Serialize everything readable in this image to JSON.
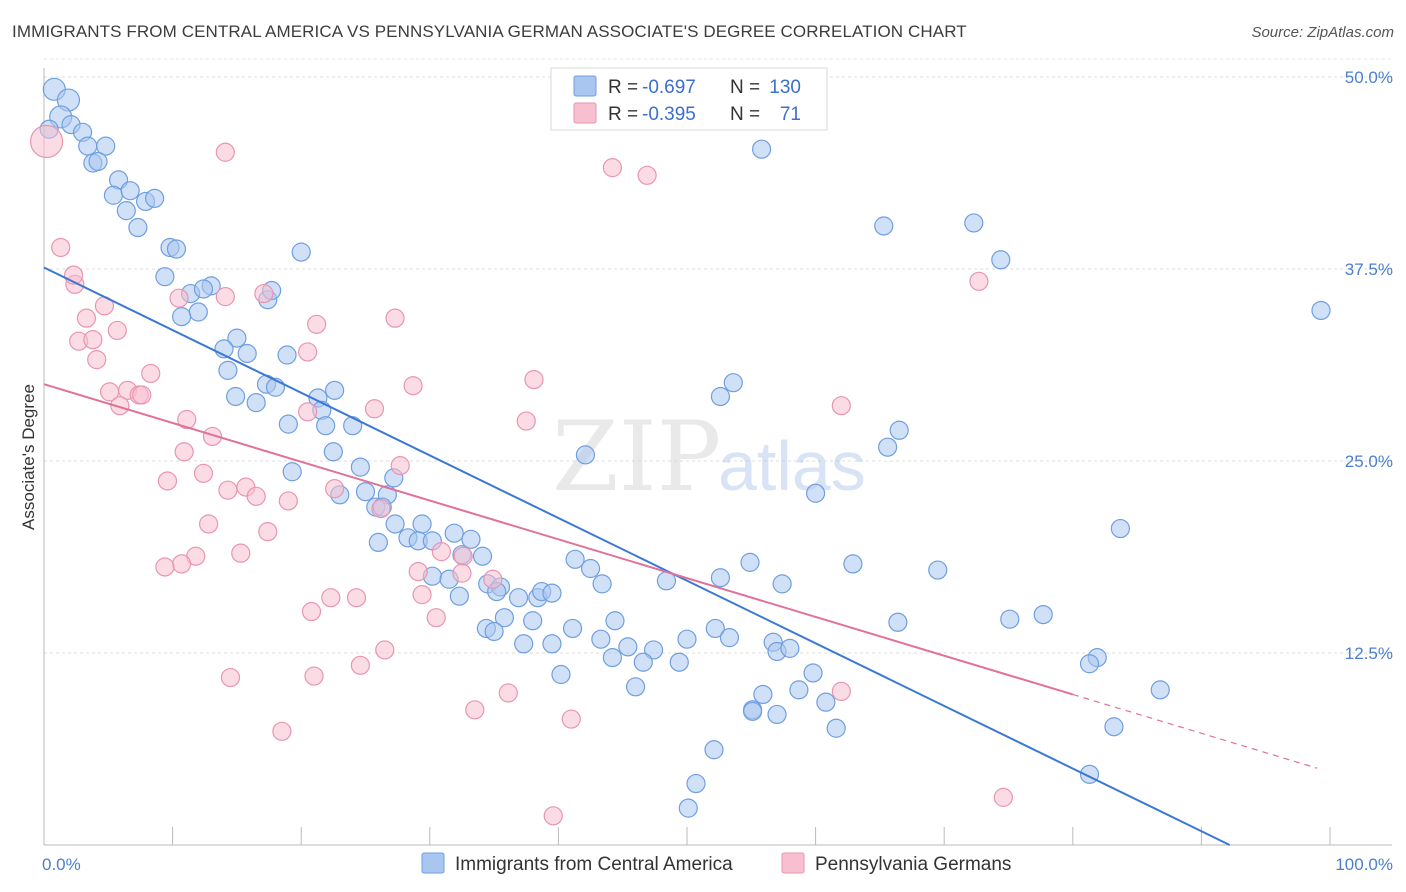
{
  "title": "IMMIGRANTS FROM CENTRAL AMERICA VS PENNSYLVANIA GERMAN ASSOCIATE'S DEGREE CORRELATION CHART",
  "source": "Source: ZipAtlas.com",
  "watermark": {
    "zip": "ZIP",
    "atlas": "atlas"
  },
  "legend_top": [
    {
      "r_label": "R =",
      "r_value": "-0.697",
      "n_label": "N =",
      "n_value": "130",
      "color": "#a9c6f0",
      "stroke": "#6f9fe0"
    },
    {
      "r_label": "R =",
      "r_value": "-0.395",
      "n_label": "N =",
      "n_value": "71",
      "color": "#f7bfd0",
      "stroke": "#e995b1"
    }
  ],
  "chart_data": {
    "type": "scatter",
    "xlabel": "",
    "ylabel": "Associate's Degree",
    "xlim": [
      0,
      100
    ],
    "ylim": [
      0,
      50
    ],
    "x_tick_labels": [
      "0.0%",
      "100.0%"
    ],
    "y_ticks": [
      12.5,
      25.0,
      37.5,
      50.0
    ],
    "y_tick_labels": [
      "12.5%",
      "25.0%",
      "37.5%",
      "50.0%"
    ],
    "grid": "horizontal dashed",
    "legend_position": "top-center and bottom",
    "series": [
      {
        "name": "Immigrants from Central America",
        "color": "#a9c6f0",
        "stroke": "#6f9fe0",
        "line_color": "#3b78d6",
        "trend": {
          "x0": 0,
          "y0": 37.6,
          "x1": 92.2,
          "y1": 0
        },
        "points": [
          [
            0.8,
            49.2
          ],
          [
            1.9,
            48.5
          ],
          [
            1.3,
            47.4
          ],
          [
            2.1,
            46.9
          ],
          [
            3.0,
            46.4
          ],
          [
            0.4,
            46.6
          ],
          [
            3.4,
            45.5
          ],
          [
            4.8,
            45.5
          ],
          [
            3.8,
            44.4
          ],
          [
            4.2,
            44.5
          ],
          [
            5.8,
            43.3
          ],
          [
            5.4,
            42.3
          ],
          [
            6.7,
            42.6
          ],
          [
            7.9,
            41.9
          ],
          [
            8.6,
            42.1
          ],
          [
            6.4,
            41.3
          ],
          [
            7.3,
            40.2
          ],
          [
            9.8,
            38.9
          ],
          [
            10.3,
            38.8
          ],
          [
            20.0,
            38.6
          ],
          [
            9.4,
            37.0
          ],
          [
            11.4,
            35.9
          ],
          [
            13.0,
            36.4
          ],
          [
            12.4,
            36.2
          ],
          [
            17.4,
            35.5
          ],
          [
            17.7,
            36.1
          ],
          [
            12.0,
            34.7
          ],
          [
            10.7,
            34.4
          ],
          [
            15.0,
            33.0
          ],
          [
            14.0,
            32.3
          ],
          [
            15.8,
            32.0
          ],
          [
            18.9,
            31.9
          ],
          [
            14.3,
            30.9
          ],
          [
            17.3,
            30.0
          ],
          [
            18.0,
            29.8
          ],
          [
            22.6,
            29.6
          ],
          [
            14.9,
            29.2
          ],
          [
            16.5,
            28.8
          ],
          [
            21.3,
            29.1
          ],
          [
            21.6,
            28.3
          ],
          [
            19.0,
            27.4
          ],
          [
            21.9,
            27.3
          ],
          [
            24.0,
            27.3
          ],
          [
            22.5,
            25.6
          ],
          [
            24.6,
            24.6
          ],
          [
            19.3,
            24.3
          ],
          [
            27.2,
            23.9
          ],
          [
            25.0,
            23.0
          ],
          [
            23.0,
            22.8
          ],
          [
            26.7,
            22.8
          ],
          [
            25.8,
            22.0
          ],
          [
            26.3,
            22.0
          ],
          [
            27.3,
            20.9
          ],
          [
            29.4,
            20.9
          ],
          [
            26.0,
            19.7
          ],
          [
            28.3,
            20.0
          ],
          [
            29.1,
            19.8
          ],
          [
            30.2,
            19.8
          ],
          [
            31.9,
            20.3
          ],
          [
            33.2,
            19.9
          ],
          [
            32.5,
            18.9
          ],
          [
            34.1,
            18.8
          ],
          [
            42.1,
            25.4
          ],
          [
            30.2,
            17.5
          ],
          [
            31.5,
            17.3
          ],
          [
            34.5,
            17.0
          ],
          [
            35.5,
            16.8
          ],
          [
            32.3,
            16.2
          ],
          [
            35.2,
            16.5
          ],
          [
            36.9,
            16.1
          ],
          [
            38.4,
            16.1
          ],
          [
            38.7,
            16.5
          ],
          [
            39.5,
            16.4
          ],
          [
            41.3,
            18.6
          ],
          [
            42.5,
            18.0
          ],
          [
            43.4,
            17.0
          ],
          [
            48.4,
            17.2
          ],
          [
            52.6,
            29.2
          ],
          [
            53.6,
            30.1
          ],
          [
            57.4,
            17.0
          ],
          [
            38.0,
            14.6
          ],
          [
            35.8,
            14.8
          ],
          [
            34.4,
            14.1
          ],
          [
            35.0,
            13.9
          ],
          [
            37.3,
            13.1
          ],
          [
            39.5,
            13.1
          ],
          [
            41.1,
            14.1
          ],
          [
            44.4,
            14.6
          ],
          [
            43.3,
            13.4
          ],
          [
            45.4,
            12.9
          ],
          [
            47.4,
            12.7
          ],
          [
            44.2,
            12.2
          ],
          [
            46.6,
            11.9
          ],
          [
            50.0,
            13.4
          ],
          [
            52.2,
            14.1
          ],
          [
            53.3,
            13.5
          ],
          [
            56.7,
            13.2
          ],
          [
            57.0,
            12.6
          ],
          [
            58.0,
            12.8
          ],
          [
            59.8,
            11.2
          ],
          [
            40.2,
            11.1
          ],
          [
            46.0,
            10.3
          ],
          [
            49.4,
            11.9
          ],
          [
            52.6,
            17.4
          ],
          [
            54.9,
            18.4
          ],
          [
            55.9,
            9.8
          ],
          [
            58.7,
            10.1
          ],
          [
            62.9,
            18.3
          ],
          [
            60.8,
            9.3
          ],
          [
            61.6,
            7.6
          ],
          [
            57.0,
            8.5
          ],
          [
            52.1,
            6.2
          ],
          [
            50.7,
            4.0
          ],
          [
            50.1,
            2.4
          ],
          [
            55.1,
            8.8
          ],
          [
            55.1,
            8.7
          ],
          [
            60.0,
            22.9
          ],
          [
            55.8,
            45.3
          ],
          [
            65.3,
            40.3
          ],
          [
            72.3,
            40.5
          ],
          [
            74.4,
            38.1
          ],
          [
            65.6,
            25.9
          ],
          [
            66.5,
            27.0
          ],
          [
            69.5,
            17.9
          ],
          [
            66.4,
            14.5
          ],
          [
            75.1,
            14.7
          ],
          [
            77.7,
            15.0
          ],
          [
            83.7,
            20.6
          ],
          [
            99.3,
            34.8
          ],
          [
            81.9,
            12.2
          ],
          [
            81.3,
            11.8
          ],
          [
            86.8,
            10.1
          ],
          [
            83.2,
            7.7
          ],
          [
            81.3,
            4.6
          ]
        ]
      },
      {
        "name": "Pennsylvania Germans",
        "color": "#f7bfd0",
        "stroke": "#e995b1",
        "line_color": "#e0729a",
        "trend": {
          "x0": 0,
          "y0": 30.0,
          "x1": 80.0,
          "y1": 9.8
        },
        "trend_dashed_extension": {
          "x0": 80.0,
          "y0": 9.8,
          "x1": 99.0,
          "y1": 5.0
        },
        "points": [
          [
            0.2,
            45.8
          ],
          [
            1.3,
            38.9
          ],
          [
            2.4,
            36.5
          ],
          [
            2.3,
            37.1
          ],
          [
            3.3,
            34.3
          ],
          [
            2.7,
            32.8
          ],
          [
            4.7,
            35.1
          ],
          [
            5.7,
            33.5
          ],
          [
            3.8,
            32.9
          ],
          [
            4.1,
            31.6
          ],
          [
            5.1,
            29.5
          ],
          [
            6.5,
            29.6
          ],
          [
            5.9,
            28.6
          ],
          [
            7.4,
            29.3
          ],
          [
            7.6,
            29.3
          ],
          [
            8.3,
            30.7
          ],
          [
            14.1,
            45.1
          ],
          [
            17.1,
            35.9
          ],
          [
            14.1,
            35.7
          ],
          [
            21.2,
            33.9
          ],
          [
            27.3,
            34.3
          ],
          [
            20.5,
            32.1
          ],
          [
            10.5,
            35.6
          ],
          [
            11.1,
            27.7
          ],
          [
            13.1,
            26.6
          ],
          [
            10.9,
            25.6
          ],
          [
            9.6,
            23.7
          ],
          [
            12.4,
            24.2
          ],
          [
            14.3,
            23.1
          ],
          [
            15.7,
            23.3
          ],
          [
            16.5,
            22.7
          ],
          [
            19.0,
            22.4
          ],
          [
            20.5,
            28.2
          ],
          [
            25.7,
            28.4
          ],
          [
            28.7,
            29.9
          ],
          [
            38.1,
            30.3
          ],
          [
            37.5,
            27.6
          ],
          [
            44.2,
            44.1
          ],
          [
            46.9,
            43.6
          ],
          [
            62.0,
            28.6
          ],
          [
            72.7,
            36.7
          ],
          [
            12.8,
            20.9
          ],
          [
            17.4,
            20.4
          ],
          [
            15.3,
            19.0
          ],
          [
            11.8,
            18.8
          ],
          [
            10.7,
            18.3
          ],
          [
            9.4,
            18.1
          ],
          [
            22.6,
            23.2
          ],
          [
            26.2,
            21.9
          ],
          [
            27.7,
            24.7
          ],
          [
            29.1,
            17.8
          ],
          [
            29.4,
            16.3
          ],
          [
            30.9,
            19.1
          ],
          [
            32.6,
            18.8
          ],
          [
            32.5,
            17.7
          ],
          [
            34.9,
            17.3
          ],
          [
            22.3,
            16.1
          ],
          [
            24.3,
            16.1
          ],
          [
            20.8,
            15.2
          ],
          [
            30.5,
            14.8
          ],
          [
            26.5,
            12.7
          ],
          [
            24.6,
            11.7
          ],
          [
            21.0,
            11.0
          ],
          [
            14.5,
            10.9
          ],
          [
            36.1,
            9.9
          ],
          [
            33.5,
            8.8
          ],
          [
            41.0,
            8.2
          ],
          [
            18.5,
            7.4
          ],
          [
            39.6,
            1.9
          ],
          [
            62.0,
            10.0
          ],
          [
            74.6,
            3.1
          ]
        ]
      }
    ]
  },
  "legend_bottom": [
    {
      "label": "Immigrants from Central America",
      "color": "#a9c6f0",
      "stroke": "#6f9fe0"
    },
    {
      "label": "Pennsylvania Germans",
      "color": "#f7bfd0",
      "stroke": "#e995b1"
    }
  ]
}
